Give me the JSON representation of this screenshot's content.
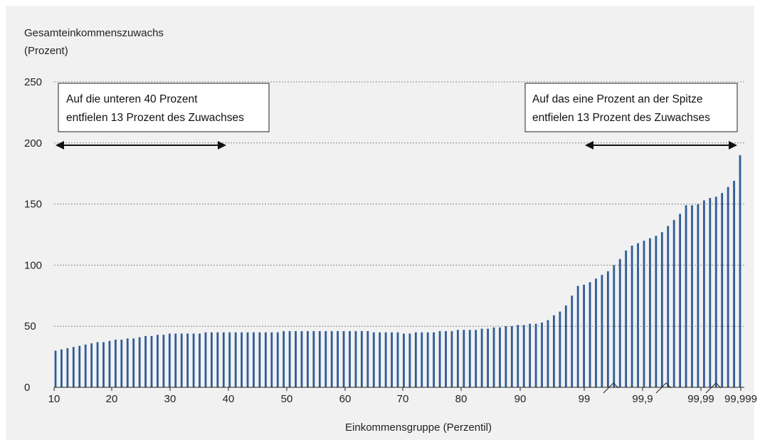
{
  "chart_data": {
    "type": "bar",
    "ylabel": [
      "Gesamteinkommenszuwachs",
      "(Prozent)"
    ],
    "xlabel": "Einkommensgruppe (Perzentil)",
    "ylim": [
      0,
      250
    ],
    "yticks": [
      0,
      50,
      100,
      150,
      200,
      250
    ],
    "xtick_labels": [
      "10",
      "20",
      "30",
      "40",
      "50",
      "60",
      "70",
      "80",
      "90",
      "99",
      "99,9",
      "99,99",
      "99,999"
    ],
    "grid": "horizontal-dotted",
    "bar_color": "#2f5c97",
    "values": [
      30,
      31,
      32,
      33,
      34,
      35,
      36,
      37,
      37,
      38,
      39,
      39,
      40,
      40,
      41,
      42,
      42,
      43,
      43,
      44,
      44,
      44,
      44,
      44,
      44,
      45,
      45,
      45,
      45,
      45,
      45,
      45,
      45,
      45,
      45,
      45,
      45,
      45,
      46,
      46,
      46,
      46,
      46,
      46,
      46,
      46,
      46,
      46,
      46,
      46,
      46,
      46,
      46,
      45,
      45,
      45,
      45,
      45,
      44,
      44,
      45,
      45,
      45,
      45,
      46,
      46,
      46,
      47,
      47,
      47,
      47,
      48,
      48,
      49,
      49,
      50,
      50,
      51,
      51,
      52,
      52,
      53,
      55,
      59,
      62,
      67,
      75,
      83,
      84,
      86,
      89,
      92,
      95,
      100,
      105,
      112,
      116,
      118,
      120,
      122,
      124,
      127,
      132,
      137,
      142,
      149,
      149,
      150,
      153,
      155,
      156,
      159,
      164,
      169,
      190
    ],
    "annotations": [
      {
        "lines": [
          "Auf die unteren 40 Prozent",
          "entfielen 13 Prozent des Zuwachses"
        ]
      },
      {
        "lines": [
          "Auf das eine Prozent an der Spitze",
          "entfielen 13 Prozent des Zuwachses"
        ]
      }
    ]
  }
}
